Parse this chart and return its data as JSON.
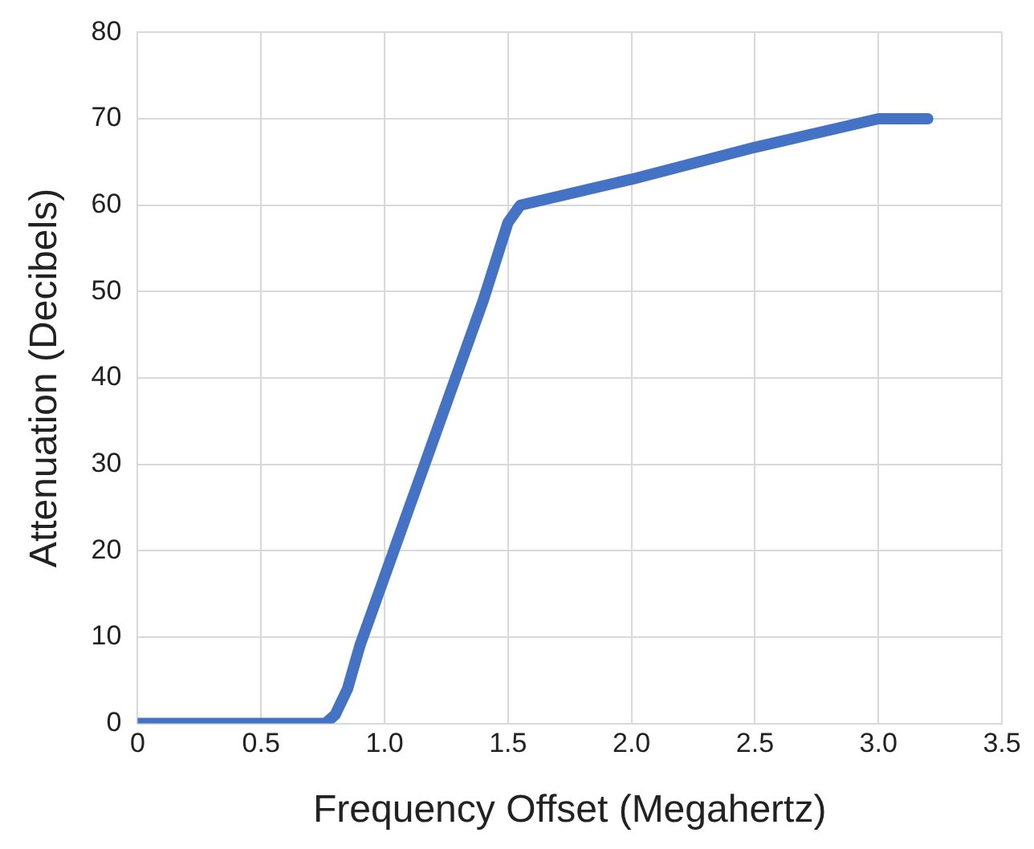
{
  "chart_data": {
    "type": "line",
    "xlabel": "Frequency Offset (Megahertz)",
    "ylabel": "Attenuation (Decibels)",
    "x": [
      0,
      0.5,
      0.76,
      0.8,
      0.85,
      0.9,
      1.0,
      1.1,
      1.2,
      1.3,
      1.4,
      1.5,
      1.55,
      2.0,
      2.5,
      3.0,
      3.2
    ],
    "series": [
      {
        "color": "#4472c4",
        "values": [
          0,
          0,
          0,
          1,
          4,
          9,
          17,
          25,
          33,
          41,
          49,
          58,
          60,
          63,
          66.7,
          70,
          70
        ]
      }
    ],
    "xlim": [
      0,
      3.5
    ],
    "xticks": [
      0,
      0.5,
      {
        "value": 1,
        "label": "1.0"
      },
      1.5,
      {
        "value": 2,
        "label": "2.0"
      },
      2.5,
      {
        "value": 3,
        "label": "3.0"
      },
      3.5
    ],
    "ylim": [
      0,
      80
    ],
    "yticks": [
      0,
      10,
      20,
      30,
      40,
      50,
      60,
      70,
      80
    ],
    "grid": true,
    "legend": false,
    "marker": "none",
    "line_style": "solid"
  }
}
